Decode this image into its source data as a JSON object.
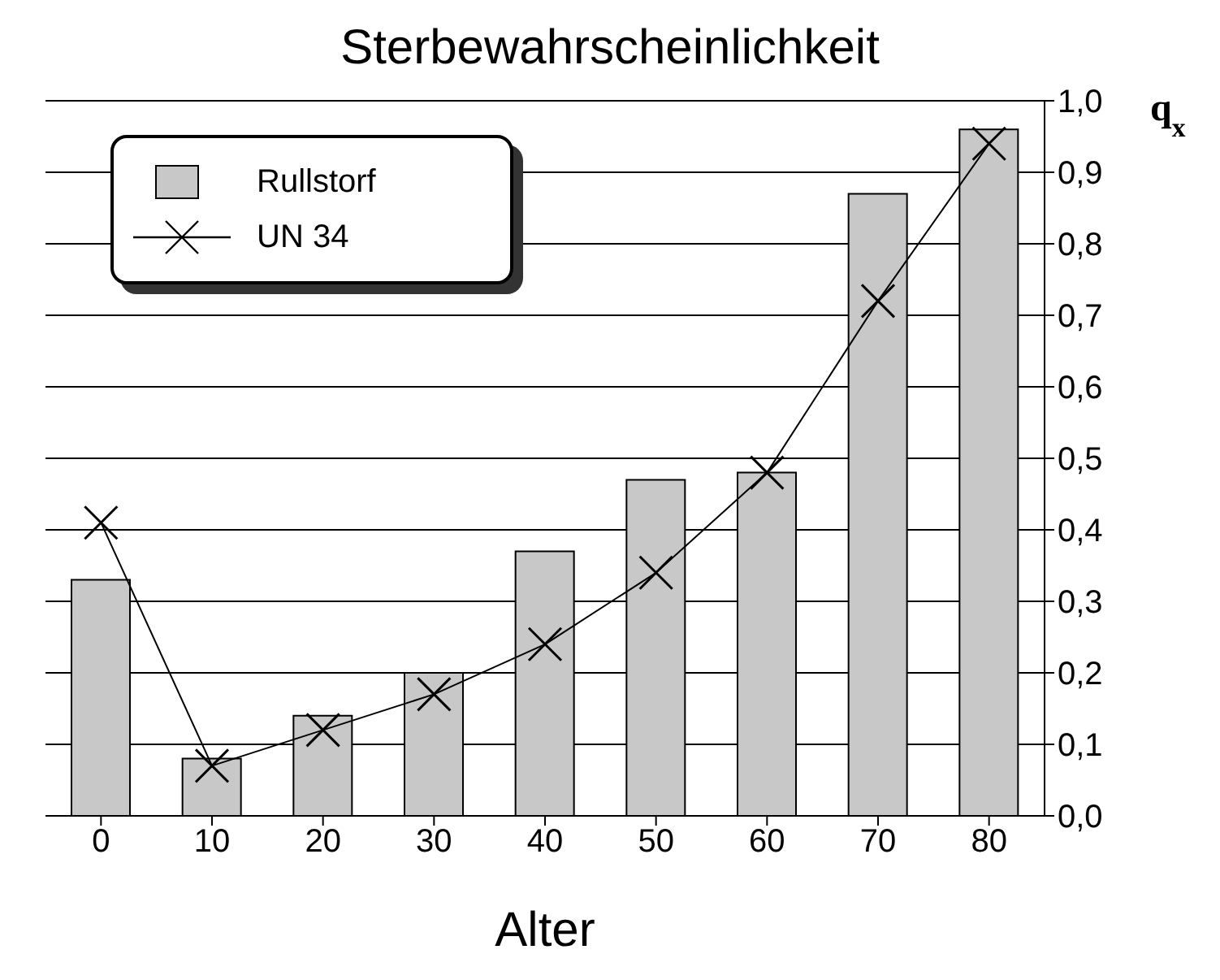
{
  "chart_data": {
    "type": "bar",
    "title": "Sterbewahrscheinlichkeit",
    "xlabel": "Alter",
    "ylabel": "q$_{x}$",
    "categories": [
      "0",
      "10",
      "20",
      "30",
      "40",
      "50",
      "60",
      "70",
      "80"
    ],
    "series": [
      {
        "name": "Rullstorf",
        "color": "#c8c8c8",
        "values": [
          0.33,
          0.08,
          0.14,
          0.2,
          0.37,
          0.47,
          0.48,
          0.87,
          0.96
        ]
      },
      {
        "name": "UN 34",
        "type": "line",
        "color": "#000000",
        "marker": "cross",
        "values": [
          0.41,
          0.07,
          0.12,
          0.17,
          0.24,
          0.34,
          0.48,
          0.72,
          0.94
        ]
      }
    ],
    "ylim": [
      0,
      1
    ],
    "yticks": [
      {
        "value": 0,
        "label": "0,0"
      },
      {
        "value": 0.1,
        "label": "0,1"
      },
      {
        "value": 0.2,
        "label": "0,2"
      },
      {
        "value": 0.3,
        "label": "0,3"
      },
      {
        "value": 0.4,
        "label": "0,4"
      },
      {
        "value": 0.5,
        "label": "0,5"
      },
      {
        "value": 0.6,
        "label": "0,6"
      },
      {
        "value": 0.7,
        "label": "0,7"
      },
      {
        "value": 0.8,
        "label": "0,8"
      },
      {
        "value": 0.9,
        "label": "0,9"
      },
      {
        "value": 1,
        "label": "1,0"
      }
    ],
    "grid": "y",
    "legend": "top left"
  }
}
